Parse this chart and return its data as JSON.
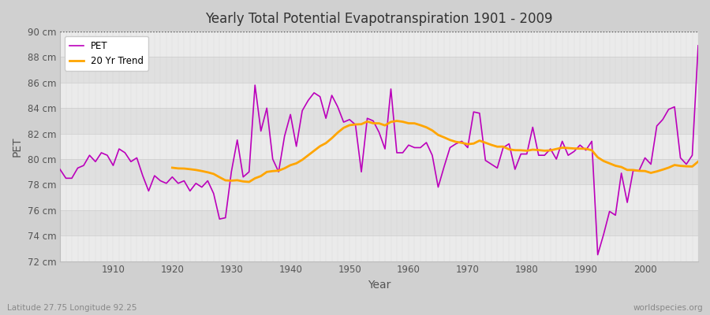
{
  "title": "Yearly Total Potential Evapotranspiration 1901 - 2009",
  "xlabel": "Year",
  "ylabel": "PET",
  "subtitle_left": "Latitude 27.75 Longitude 92.25",
  "subtitle_right": "worldspecies.org",
  "pet_color": "#bb00bb",
  "trend_color": "#ffa500",
  "fig_bg_color": "#d0d0d0",
  "plot_bg_color": "#e8e8e8",
  "ylim": [
    72,
    90
  ],
  "ytick_step": 2,
  "years": [
    1901,
    1902,
    1903,
    1904,
    1905,
    1906,
    1907,
    1908,
    1909,
    1910,
    1911,
    1912,
    1913,
    1914,
    1915,
    1916,
    1917,
    1918,
    1919,
    1920,
    1921,
    1922,
    1923,
    1924,
    1925,
    1926,
    1927,
    1928,
    1929,
    1930,
    1931,
    1932,
    1933,
    1934,
    1935,
    1936,
    1937,
    1938,
    1939,
    1940,
    1941,
    1942,
    1943,
    1944,
    1945,
    1946,
    1947,
    1948,
    1949,
    1950,
    1951,
    1952,
    1953,
    1954,
    1955,
    1956,
    1957,
    1958,
    1959,
    1960,
    1961,
    1962,
    1963,
    1964,
    1965,
    1966,
    1967,
    1968,
    1969,
    1970,
    1971,
    1972,
    1973,
    1974,
    1975,
    1976,
    1977,
    1978,
    1979,
    1980,
    1981,
    1982,
    1983,
    1984,
    1985,
    1986,
    1987,
    1988,
    1989,
    1990,
    1991,
    1992,
    1993,
    1994,
    1995,
    1996,
    1997,
    1998,
    1999,
    2000,
    2001,
    2002,
    2003,
    2004,
    2005,
    2006,
    2007,
    2008,
    2009
  ],
  "pet_values": [
    79.2,
    78.5,
    78.5,
    79.3,
    79.5,
    80.3,
    79.8,
    80.5,
    80.3,
    79.5,
    80.8,
    80.5,
    79.8,
    80.1,
    78.7,
    77.5,
    78.7,
    78.3,
    78.1,
    78.6,
    78.1,
    78.3,
    77.5,
    78.1,
    77.8,
    78.3,
    77.3,
    75.3,
    75.4,
    79.0,
    81.5,
    78.6,
    79.0,
    85.8,
    82.2,
    84.0,
    80.0,
    79.0,
    81.8,
    83.5,
    81.0,
    83.8,
    84.6,
    85.2,
    84.9,
    83.2,
    85.0,
    84.1,
    82.9,
    83.1,
    82.7,
    79.0,
    83.2,
    83.0,
    82.1,
    80.8,
    85.5,
    80.5,
    80.5,
    81.1,
    80.9,
    80.9,
    81.3,
    80.3,
    77.8,
    79.4,
    80.9,
    81.2,
    81.4,
    80.9,
    83.7,
    83.6,
    79.9,
    79.6,
    79.3,
    80.9,
    81.2,
    79.2,
    80.4,
    80.4,
    82.5,
    80.3,
    80.3,
    80.8,
    80.0,
    81.4,
    80.3,
    80.6,
    81.1,
    80.7,
    81.4,
    72.5,
    74.1,
    75.9,
    75.6,
    78.9,
    76.6,
    79.1,
    79.1,
    80.1,
    79.6,
    82.6,
    83.1,
    83.9,
    84.1,
    80.1,
    79.6,
    80.3,
    88.9
  ],
  "band_colors": [
    "#ebebeb",
    "#e0e0e0"
  ],
  "grid_color": "#d0d0d8",
  "grid_minor_color": "#d8d8e0"
}
